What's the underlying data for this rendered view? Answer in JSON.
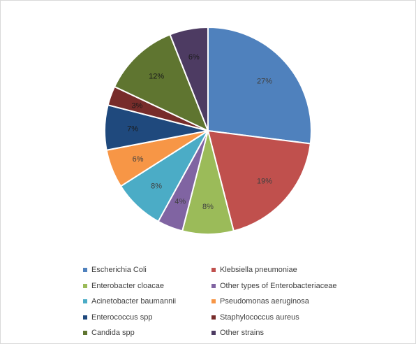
{
  "chart_data": {
    "type": "pie",
    "title": "",
    "slices": [
      {
        "label": "Escherichia Coli",
        "value": 27,
        "display": "27%",
        "color": "#4f81bd"
      },
      {
        "label": "Klebsiella pneumoniae",
        "value": 19,
        "display": "19%",
        "color": "#c0504d"
      },
      {
        "label": "Enterobacter cloacae",
        "value": 8,
        "display": "8%",
        "color": "#9bbb59"
      },
      {
        "label": "Other types of Enterobacteriaceae",
        "value": 4,
        "display": "4%",
        "color": "#8064a2"
      },
      {
        "label": "Acinetobacter baumannii",
        "value": 8,
        "display": "8%",
        "color": "#4bacc6"
      },
      {
        "label": "Pseudomonas aeruginosa",
        "value": 6,
        "display": "6%",
        "color": "#f79646"
      },
      {
        "label": "Enterococcus spp",
        "value": 7,
        "display": "7%",
        "color": "#1f497d"
      },
      {
        "label": "Staphylococcus aureus",
        "value": 3,
        "display": "3%",
        "color": "#772c2a"
      },
      {
        "label": "Candida spp",
        "value": 12,
        "display": "12%",
        "color": "#5f7530"
      },
      {
        "label": "Other strains",
        "value": 6,
        "display": "6%",
        "color": "#4d3b62"
      }
    ],
    "legend_position": "bottom",
    "grid": false
  }
}
